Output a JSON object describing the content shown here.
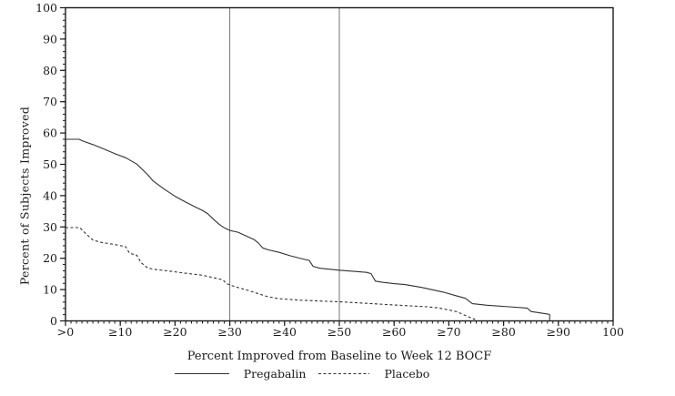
{
  "chart_data": {
    "type": "line",
    "title": "",
    "xlabel": "Percent Improved from Baseline to Week 12 BOCF",
    "ylabel": "Percent of Subjects Improved",
    "xlim": [
      0,
      100
    ],
    "ylim": [
      0,
      100
    ],
    "grid": false,
    "legend_position": "bottom",
    "x_tick_values": [
      0,
      10,
      20,
      30,
      40,
      50,
      60,
      70,
      80,
      90,
      100
    ],
    "x_tick_labels": [
      ">0",
      "≥10",
      "≥20",
      "≥30",
      "≥40",
      "≥50",
      "≥60",
      "≥70",
      "≥80",
      "≥90",
      "100"
    ],
    "y_tick_values": [
      0,
      10,
      20,
      30,
      40,
      50,
      60,
      70,
      80,
      90,
      100
    ],
    "y_tick_labels": [
      "0",
      "10",
      "20",
      "30",
      "40",
      "50",
      "60",
      "70",
      "80",
      "90",
      "100"
    ],
    "x_minor_step": 1,
    "y_minor_step": 2,
    "reference_lines_x": [
      30,
      50
    ],
    "colors": {
      "axis": "#1a1a1a",
      "reference": "#757575",
      "series": "#303030"
    },
    "series": [
      {
        "name": "Pregabalin",
        "style": "solid",
        "color": "#303030",
        "points": [
          [
            0,
            58
          ],
          [
            2.5,
            58
          ],
          [
            3.2,
            57.4
          ],
          [
            5,
            56.3
          ],
          [
            7,
            54.9
          ],
          [
            9,
            53.4
          ],
          [
            11,
            52.1
          ],
          [
            13,
            50.1
          ],
          [
            14,
            48.4
          ],
          [
            15,
            46.7
          ],
          [
            16,
            44.7
          ],
          [
            17,
            43.4
          ],
          [
            18,
            42.1
          ],
          [
            20,
            39.8
          ],
          [
            22,
            37.9
          ],
          [
            24,
            36.1
          ],
          [
            25,
            35.3
          ],
          [
            26,
            34.2
          ],
          [
            27,
            32.5
          ],
          [
            28,
            30.9
          ],
          [
            29,
            29.7
          ],
          [
            30,
            28.9
          ],
          [
            31.5,
            28.3
          ],
          [
            33,
            27.1
          ],
          [
            34.5,
            25.9
          ],
          [
            35.2,
            24.9
          ],
          [
            36,
            23.3
          ],
          [
            37,
            22.7
          ],
          [
            39,
            21.9
          ],
          [
            41,
            20.8
          ],
          [
            43,
            19.9
          ],
          [
            44.5,
            19.3
          ],
          [
            45.2,
            17.4
          ],
          [
            46.5,
            16.8
          ],
          [
            50,
            16.2
          ],
          [
            55,
            15.5
          ],
          [
            55.8,
            15.1
          ],
          [
            56.6,
            12.7
          ],
          [
            58,
            12.3
          ],
          [
            60,
            11.9
          ],
          [
            62,
            11.6
          ],
          [
            65,
            10.7
          ],
          [
            69,
            9.2
          ],
          [
            71,
            8.2
          ],
          [
            73,
            7.2
          ],
          [
            74.3,
            5.5
          ],
          [
            77,
            5.0
          ],
          [
            81,
            4.5
          ],
          [
            84.3,
            4.1
          ],
          [
            85,
            3.0
          ],
          [
            88,
            2.2
          ],
          [
            88.4,
            2.0
          ],
          [
            88.4,
            0.2
          ]
        ]
      },
      {
        "name": "Placebo",
        "style": "dashed",
        "color": "#303030",
        "points": [
          [
            0,
            29.8
          ],
          [
            2.6,
            29.8
          ],
          [
            3.5,
            28.2
          ],
          [
            5,
            25.8
          ],
          [
            6.5,
            25.1
          ],
          [
            9,
            24.4
          ],
          [
            11,
            23.7
          ],
          [
            11.7,
            21.6
          ],
          [
            13,
            21.0
          ],
          [
            13.8,
            18.6
          ],
          [
            15,
            16.9
          ],
          [
            16.5,
            16.4
          ],
          [
            19,
            15.9
          ],
          [
            22,
            15.2
          ],
          [
            25,
            14.6
          ],
          [
            28,
            13.4
          ],
          [
            28.7,
            13.2
          ],
          [
            29.4,
            11.9
          ],
          [
            31,
            10.9
          ],
          [
            33,
            9.9
          ],
          [
            35,
            8.8
          ],
          [
            37,
            7.7
          ],
          [
            39,
            7.1
          ],
          [
            43,
            6.6
          ],
          [
            47,
            6.3
          ],
          [
            50,
            6.1
          ],
          [
            55,
            5.6
          ],
          [
            60,
            5.1
          ],
          [
            63,
            4.8
          ],
          [
            66,
            4.5
          ],
          [
            68,
            4.2
          ],
          [
            70,
            3.5
          ],
          [
            71.5,
            2.9
          ],
          [
            72.8,
            1.9
          ],
          [
            74,
            1.0
          ],
          [
            74.8,
            0.5
          ]
        ]
      }
    ]
  }
}
